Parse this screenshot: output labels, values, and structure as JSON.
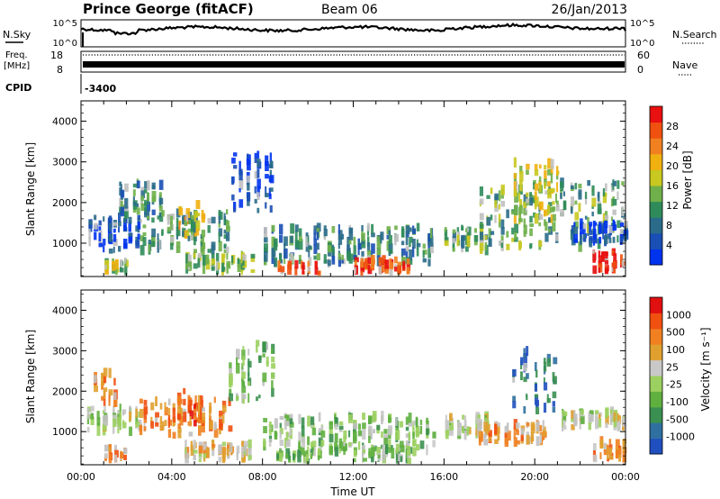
{
  "header": {
    "station": "Prince George (fitACF)",
    "beam": "Beam 06",
    "date": "26/Jan/2013"
  },
  "top_panels": {
    "nsky_label": "N.Sky",
    "nsky_ticks": [
      "10^5",
      "10^0"
    ],
    "nsearch_label": "N.Search",
    "nsearch_ticks": [
      "10^5",
      "10^0"
    ],
    "freq_label": "Freq.",
    "freq_unit": "[MHz]",
    "freq_ticks": [
      "18",
      "8"
    ],
    "nave_label": "Nave",
    "nave_ticks": [
      "60",
      "0"
    ],
    "cpid_label": "CPID",
    "cpid_value": "-3400"
  },
  "colors": {
    "power": [
      "#0033ee",
      "#1a4fb5",
      "#2a6b8a",
      "#2f8c5a",
      "#6fb04a",
      "#c8c820",
      "#f0b010",
      "#f08020",
      "#f05010",
      "#e81010"
    ],
    "velocity": [
      "#2050c0",
      "#3070a0",
      "#3a9050",
      "#60b040",
      "#9cd060",
      "#c8c8c8",
      "#e0a030",
      "#f08020",
      "#f05010",
      "#e01010"
    ],
    "ground_scatter": "#c0c0c0"
  },
  "chart_data": [
    {
      "type": "heatmap",
      "panel": "power",
      "ylabel": "Slant Range [km]",
      "ylim": [
        180,
        4500
      ],
      "yticks": [
        "1000",
        "2000",
        "3000",
        "4000"
      ],
      "xticks": [
        "00:00",
        "04:00",
        "08:00",
        "12:00",
        "16:00",
        "20:00",
        "00:00"
      ],
      "colorbar_label": "Power [dB]",
      "colorbar_ticks": [
        "28",
        "24",
        "20",
        "16",
        "12",
        "8",
        "4"
      ],
      "regions": [
        {
          "t": [
            0.2,
            2.6
          ],
          "r": [
            800,
            1650
          ],
          "level": 0.15
        },
        {
          "t": [
            1.0,
            2.0
          ],
          "r": [
            300,
            600
          ],
          "level": 0.5
        },
        {
          "t": [
            1.5,
            3.5
          ],
          "r": [
            1600,
            2500
          ],
          "level": 0.3
        },
        {
          "t": [
            2.5,
            6.5
          ],
          "r": [
            800,
            1800
          ],
          "level": 0.35
        },
        {
          "t": [
            4.2,
            5.4
          ],
          "r": [
            1200,
            2000
          ],
          "level": 0.6
        },
        {
          "t": [
            4.5,
            7.5
          ],
          "r": [
            300,
            700
          ],
          "level": 0.45
        },
        {
          "t": [
            6.5,
            8.5
          ],
          "r": [
            1800,
            3200
          ],
          "level": 0.1
        },
        {
          "t": [
            8.0,
            15.5
          ],
          "r": [
            500,
            1400
          ],
          "level": 0.3
        },
        {
          "t": [
            8.5,
            10.5
          ],
          "r": [
            200,
            500
          ],
          "level": 0.9
        },
        {
          "t": [
            12.0,
            14.5
          ],
          "r": [
            200,
            600
          ],
          "level": 0.85
        },
        {
          "t": [
            16.0,
            18.0
          ],
          "r": [
            800,
            1400
          ],
          "level": 0.4
        },
        {
          "t": [
            17.5,
            24.0
          ],
          "r": [
            900,
            2500
          ],
          "level": 0.4
        },
        {
          "t": [
            19.0,
            21.0
          ],
          "r": [
            1500,
            3000
          ],
          "level": 0.55
        },
        {
          "t": [
            21.5,
            24.0
          ],
          "r": [
            1000,
            1500
          ],
          "level": 0.1
        },
        {
          "t": [
            22.5,
            24.0
          ],
          "r": [
            300,
            800
          ],
          "level": 0.95
        }
      ]
    },
    {
      "type": "heatmap",
      "panel": "velocity",
      "ylabel": "Slant Range [km]",
      "xlabel": "Time UT",
      "ylim": [
        180,
        4500
      ],
      "yticks": [
        "1000",
        "2000",
        "3000",
        "4000"
      ],
      "xticks": [
        "00:00",
        "04:00",
        "08:00",
        "12:00",
        "16:00",
        "20:00",
        "00:00"
      ],
      "colorbar_label": "Velocity [m s⁻¹]",
      "colorbar_ticks": [
        "1000",
        "500",
        "100",
        "25",
        "-25",
        "-100",
        "-500",
        "-1000"
      ],
      "regions": [
        {
          "t": [
            0.2,
            2.6
          ],
          "r": [
            1000,
            1600
          ],
          "level": 0.5
        },
        {
          "t": [
            0.5,
            1.5
          ],
          "r": [
            1700,
            2500
          ],
          "level": 0.75
        },
        {
          "t": [
            1.0,
            2.0
          ],
          "r": [
            300,
            600
          ],
          "level": 0.7
        },
        {
          "t": [
            2.5,
            6.5
          ],
          "r": [
            900,
            1800
          ],
          "level": 0.72
        },
        {
          "t": [
            4.2,
            5.4
          ],
          "r": [
            1200,
            2000
          ],
          "level": 0.8
        },
        {
          "t": [
            4.5,
            7.5
          ],
          "r": [
            300,
            700
          ],
          "level": 0.6
        },
        {
          "t": [
            6.5,
            8.5
          ],
          "r": [
            1800,
            3200
          ],
          "level": 0.35
        },
        {
          "t": [
            8.0,
            15.5
          ],
          "r": [
            500,
            1400
          ],
          "level": 0.4
        },
        {
          "t": [
            8.5,
            10.5
          ],
          "r": [
            200,
            500
          ],
          "level": 0.35
        },
        {
          "t": [
            12.0,
            14.5
          ],
          "r": [
            200,
            600
          ],
          "level": 0.38
        },
        {
          "t": [
            16.0,
            18.0
          ],
          "r": [
            900,
            1400
          ],
          "level": 0.5
        },
        {
          "t": [
            17.5,
            20.5
          ],
          "r": [
            700,
            1200
          ],
          "level": 0.7
        },
        {
          "t": [
            19.0,
            21.0
          ],
          "r": [
            1500,
            3000
          ],
          "level": 0.15
        },
        {
          "t": [
            21.0,
            24.0
          ],
          "r": [
            1100,
            1500
          ],
          "level": 0.5
        },
        {
          "t": [
            22.5,
            24.0
          ],
          "r": [
            300,
            800
          ],
          "level": 0.72
        }
      ]
    }
  ]
}
